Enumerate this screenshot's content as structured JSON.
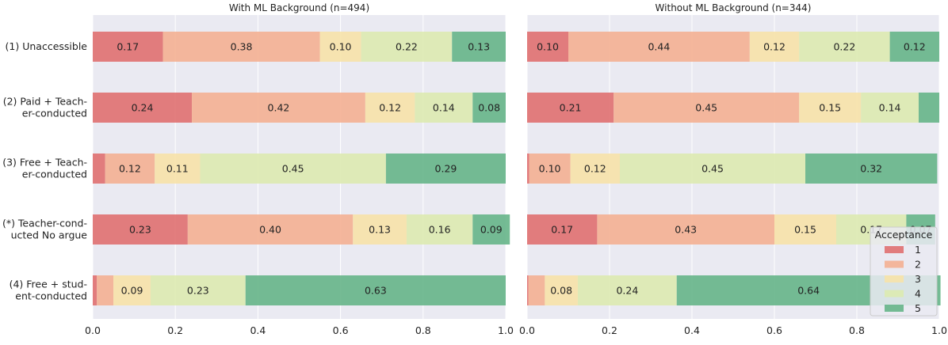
{
  "chart_data": {
    "type": "bar",
    "orientation": "horizontal",
    "stacked": true,
    "categories": [
      "(1) Unaccessible",
      "(2) Paid + Teach-\ner-conducted",
      "(3) Free + Teach-\ner-conducted",
      "(*) Teacher-cond-\nucted No argue",
      "(4) Free + stud-\nent-conducted"
    ],
    "xlim": [
      0,
      1
    ],
    "xticks": [
      "0.0",
      "0.2",
      "0.4",
      "0.6",
      "0.8",
      "1.0"
    ],
    "grid": true,
    "background": "#eaeaf2",
    "legend": {
      "title": "Acceptance",
      "placement": "bottom-right",
      "entries": [
        "1",
        "2",
        "3",
        "4",
        "5"
      ],
      "colors": [
        "#e07070",
        "#f4b092",
        "#f7e2a8",
        "#ddeab0",
        "#66b588"
      ]
    },
    "panels": [
      {
        "title": "With ML Background (n=494)",
        "series": [
          {
            "name": "1",
            "values": [
              0.17,
              0.24,
              0.03,
              0.23,
              0.01
            ],
            "labels": [
              "0.17",
              "0.24",
              "",
              "0.23",
              ""
            ]
          },
          {
            "name": "2",
            "values": [
              0.38,
              0.42,
              0.12,
              0.4,
              0.04
            ],
            "labels": [
              "0.38",
              "0.42",
              "0.12",
              "0.40",
              ""
            ]
          },
          {
            "name": "3",
            "values": [
              0.1,
              0.12,
              0.11,
              0.13,
              0.09
            ],
            "labels": [
              "0.10",
              "0.12",
              "0.11",
              "0.13",
              "0.09"
            ]
          },
          {
            "name": "4",
            "values": [
              0.22,
              0.14,
              0.45,
              0.16,
              0.23
            ],
            "labels": [
              "0.22",
              "0.14",
              "0.45",
              "0.16",
              "0.23"
            ]
          },
          {
            "name": "5",
            "values": [
              0.13,
              0.08,
              0.29,
              0.09,
              0.63
            ],
            "labels": [
              "0.13",
              "0.08",
              "0.29",
              "0.09",
              "0.63"
            ]
          }
        ]
      },
      {
        "title": "Without ML Background (n=344)",
        "series": [
          {
            "name": "1",
            "values": [
              0.1,
              0.21,
              0.005,
              0.17,
              0.003
            ],
            "labels": [
              "0.10",
              "0.21",
              "",
              "0.17",
              ""
            ]
          },
          {
            "name": "2",
            "values": [
              0.44,
              0.45,
              0.1,
              0.43,
              0.04
            ],
            "labels": [
              "0.44",
              "0.45",
              "0.10",
              "0.43",
              ""
            ]
          },
          {
            "name": "3",
            "values": [
              0.12,
              0.15,
              0.12,
              0.15,
              0.08
            ],
            "labels": [
              "0.12",
              "0.15",
              "0.12",
              "0.15",
              "0.08"
            ]
          },
          {
            "name": "4",
            "values": [
              0.22,
              0.14,
              0.45,
              0.17,
              0.24
            ],
            "labels": [
              "0.22",
              "0.14",
              "0.45",
              "0.17",
              "0.24"
            ]
          },
          {
            "name": "5",
            "values": [
              0.12,
              0.05,
              0.32,
              0.07,
              0.64
            ],
            "labels": [
              "0.12",
              "",
              "0.32",
              "0.07",
              "0.64"
            ]
          }
        ]
      }
    ]
  }
}
